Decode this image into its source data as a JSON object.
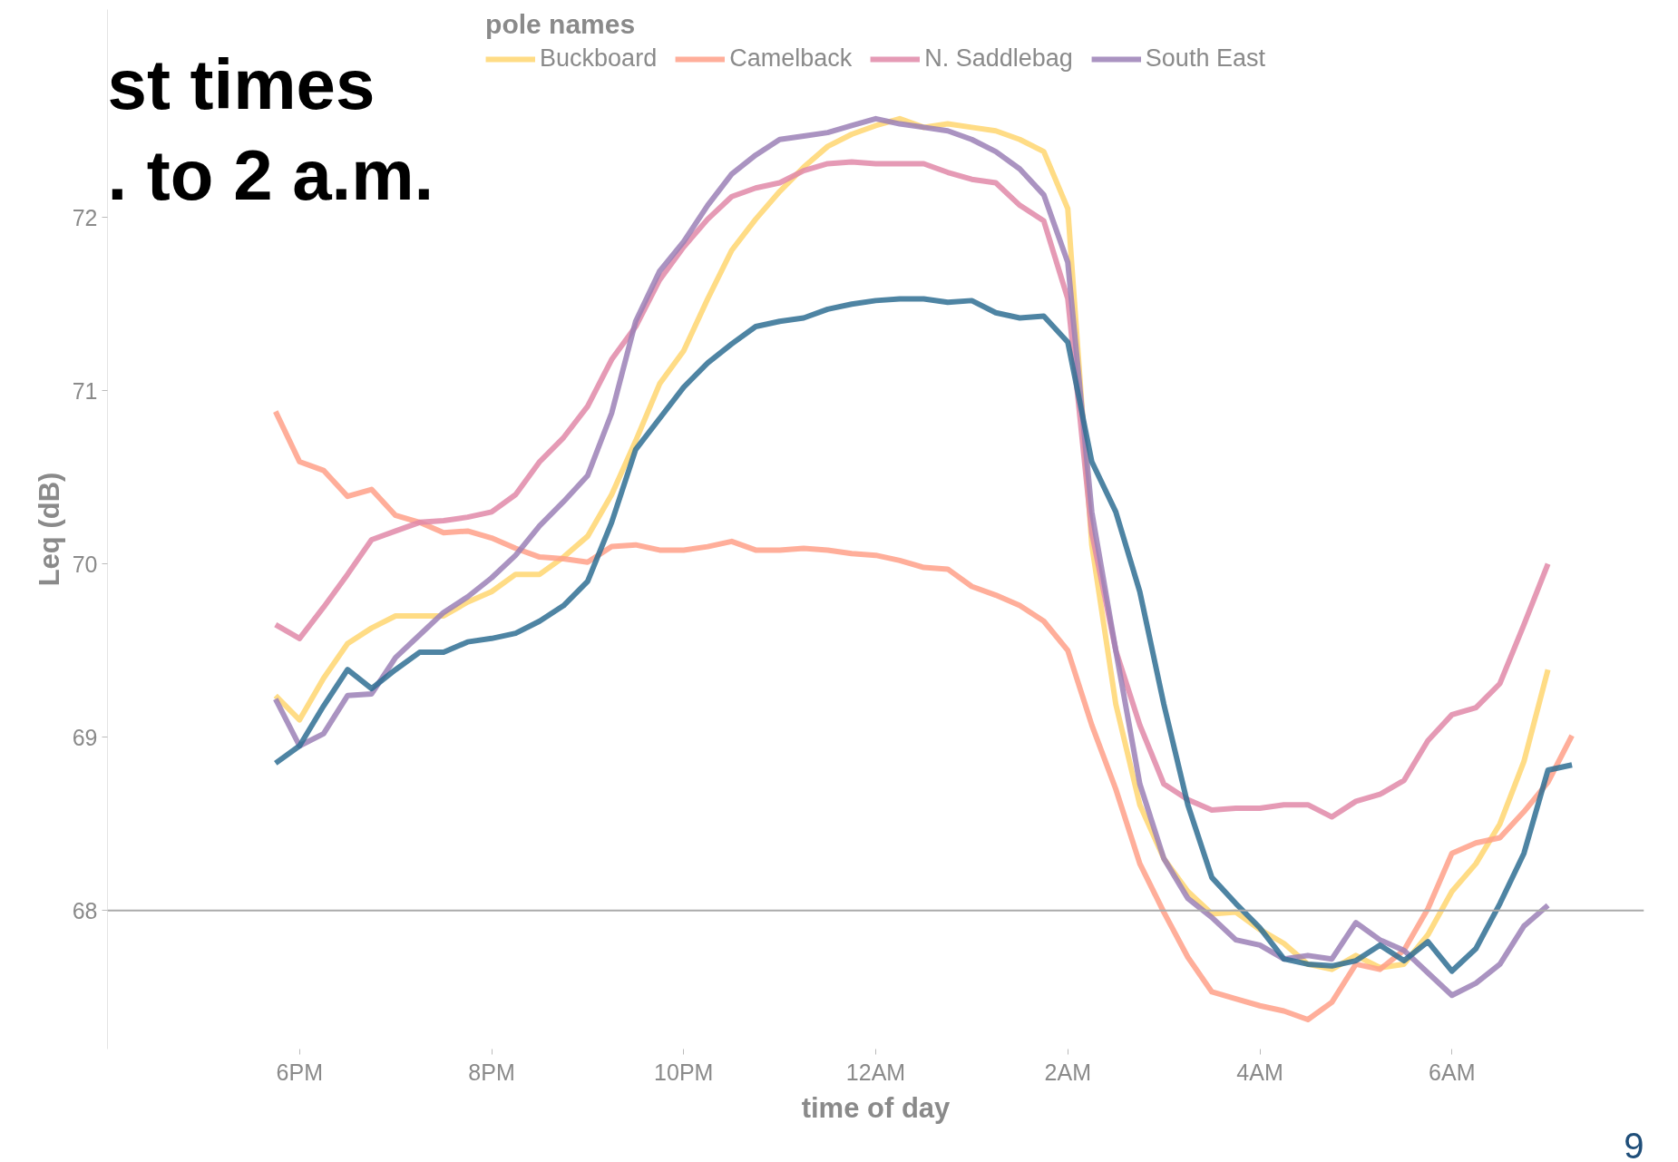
{
  "chart_data": {
    "type": "line",
    "title": "st times\n. to 2 a.m.",
    "xlabel": "time of day",
    "ylabel": "Leq (dB)",
    "legend_title": "pole names",
    "annotations": [
      "9"
    ],
    "categories": [
      null,
      "6PM",
      null,
      null,
      null,
      null,
      null,
      null,
      null,
      "8PM",
      null,
      null,
      null,
      null,
      null,
      null,
      null,
      "10PM",
      null,
      null,
      null,
      null,
      null,
      null,
      null,
      "12AM",
      null,
      null,
      null,
      null,
      null,
      null,
      null,
      "2AM",
      null,
      null,
      null,
      null,
      null,
      null,
      null,
      "4AM",
      null,
      null,
      null,
      null,
      null,
      null,
      null,
      "6AM",
      null,
      null,
      null,
      null,
      null
    ],
    "series": [
      {
        "name": "Buckboard",
        "color": "#ffd670",
        "values": [
          69.24,
          69.1,
          69.34,
          69.54,
          69.63,
          69.7,
          69.7,
          69.7,
          69.78,
          69.84,
          69.94,
          69.94,
          70.04,
          70.16,
          70.4,
          70.71,
          71.04,
          71.23,
          71.53,
          71.81,
          71.99,
          72.15,
          72.29,
          72.41,
          72.48,
          72.53,
          72.57,
          72.52,
          72.54,
          72.52,
          72.5,
          72.45,
          72.38,
          72.05,
          70.11,
          69.19,
          68.61,
          68.3,
          68.11,
          67.98,
          67.99,
          67.89,
          67.81,
          67.69,
          67.66,
          67.74,
          67.67,
          67.69,
          67.86,
          68.11,
          68.27,
          68.5,
          68.86,
          69.39,
          null
        ]
      },
      {
        "name": "Camelback",
        "color": "#ffa088",
        "values": [
          70.88,
          70.59,
          70.54,
          70.39,
          70.43,
          70.28,
          70.24,
          70.18,
          70.19,
          70.15,
          70.09,
          70.04,
          70.03,
          70.01,
          70.1,
          70.11,
          70.08,
          70.08,
          70.1,
          70.13,
          70.08,
          70.08,
          70.09,
          70.08,
          70.06,
          70.05,
          70.02,
          69.98,
          69.97,
          69.87,
          69.82,
          69.76,
          69.67,
          69.5,
          69.07,
          68.7,
          68.27,
          67.99,
          67.73,
          67.53,
          67.49,
          67.45,
          67.42,
          67.37,
          67.47,
          67.69,
          67.66,
          67.77,
          68.01,
          68.33,
          68.39,
          68.42,
          68.57,
          68.74,
          69.01
        ]
      },
      {
        "name": "N. Saddlebag",
        "color": "#e088a8",
        "values": [
          69.65,
          69.57,
          69.75,
          69.94,
          70.14,
          70.19,
          70.24,
          70.25,
          70.27,
          70.3,
          70.4,
          70.59,
          70.73,
          70.91,
          71.18,
          71.37,
          71.64,
          71.83,
          71.99,
          72.12,
          72.17,
          72.2,
          72.27,
          72.31,
          72.32,
          72.31,
          72.31,
          72.31,
          72.26,
          72.22,
          72.2,
          72.07,
          71.98,
          71.53,
          70.18,
          69.5,
          69.07,
          68.73,
          68.64,
          68.58,
          68.59,
          68.59,
          68.61,
          68.61,
          68.54,
          68.63,
          68.67,
          68.75,
          68.98,
          69.13,
          69.17,
          69.31,
          69.65,
          70.0,
          null
        ]
      },
      {
        "name": "South East",
        "color": "#9b80b6",
        "values": [
          69.22,
          68.95,
          69.02,
          69.24,
          69.25,
          69.46,
          69.59,
          69.72,
          69.81,
          69.92,
          70.05,
          70.22,
          70.36,
          70.51,
          70.87,
          71.4,
          71.69,
          71.86,
          72.07,
          72.25,
          72.36,
          72.45,
          72.47,
          72.49,
          72.53,
          72.57,
          72.54,
          72.52,
          72.5,
          72.45,
          72.38,
          72.28,
          72.13,
          71.74,
          70.3,
          69.5,
          68.73,
          68.3,
          68.07,
          67.96,
          67.83,
          67.8,
          67.72,
          67.74,
          67.72,
          67.93,
          67.83,
          67.77,
          67.64,
          67.51,
          67.58,
          67.69,
          67.91,
          68.03,
          null
        ]
      },
      {
        "color": "#2f6f93",
        "values": [
          68.85,
          68.95,
          69.18,
          69.39,
          69.28,
          69.39,
          69.49,
          69.49,
          69.55,
          69.57,
          69.6,
          69.67,
          69.76,
          69.9,
          70.24,
          70.66,
          70.84,
          71.02,
          71.16,
          71.27,
          71.37,
          71.4,
          71.42,
          71.47,
          71.5,
          71.52,
          71.53,
          71.53,
          71.51,
          71.52,
          71.45,
          71.42,
          71.43,
          71.28,
          70.59,
          70.3,
          69.84,
          69.19,
          68.61,
          68.19,
          68.04,
          67.9,
          67.72,
          67.69,
          67.68,
          67.71,
          67.8,
          67.71,
          67.82,
          67.65,
          67.78,
          68.04,
          68.33,
          68.81,
          68.84
        ]
      }
    ],
    "ylim": [
      67.2,
      73.2
    ],
    "yticks": [
      68,
      69,
      70,
      71,
      72
    ],
    "ref_lines": [
      {
        "axis": "y",
        "value": 68,
        "label": null,
        "color": "#aaaaaa"
      }
    ],
    "legend": "top",
    "grid": false,
    "marker": "none",
    "line_style": "solid"
  }
}
